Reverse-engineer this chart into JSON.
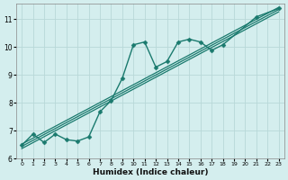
{
  "xlabel": "Humidex (Indice chaleur)",
  "ylabel": "",
  "background_color": "#d4eeee",
  "grid_color": "#b8d8d8",
  "line_color": "#1a7a6e",
  "xlim": [
    -0.5,
    23.5
  ],
  "ylim": [
    6.0,
    11.55
  ],
  "yticks": [
    6,
    7,
    8,
    9,
    10,
    11
  ],
  "xticks": [
    0,
    1,
    2,
    3,
    4,
    5,
    6,
    7,
    8,
    9,
    10,
    11,
    12,
    13,
    14,
    15,
    16,
    17,
    18,
    19,
    20,
    21,
    22,
    23
  ],
  "straight_lines": [
    {
      "x0": 0,
      "y0": 6.52,
      "x1": 23,
      "y1": 11.42
    },
    {
      "x0": 0,
      "y0": 6.44,
      "x1": 23,
      "y1": 11.34
    },
    {
      "x0": 0,
      "y0": 6.36,
      "x1": 23,
      "y1": 11.26
    }
  ],
  "marker_series": {
    "x": [
      0,
      1,
      2,
      3,
      4,
      5,
      6,
      7,
      8,
      9,
      10,
      11,
      12,
      13,
      14,
      15,
      16,
      17,
      18,
      21,
      23
    ],
    "y": [
      6.48,
      6.88,
      6.58,
      6.88,
      6.68,
      6.63,
      6.78,
      7.68,
      8.08,
      8.88,
      10.08,
      10.18,
      9.28,
      9.48,
      10.18,
      10.28,
      10.18,
      9.88,
      10.08,
      11.08,
      11.38
    ],
    "marker": "D",
    "markersize": 2.5,
    "linewidth": 1.0
  }
}
